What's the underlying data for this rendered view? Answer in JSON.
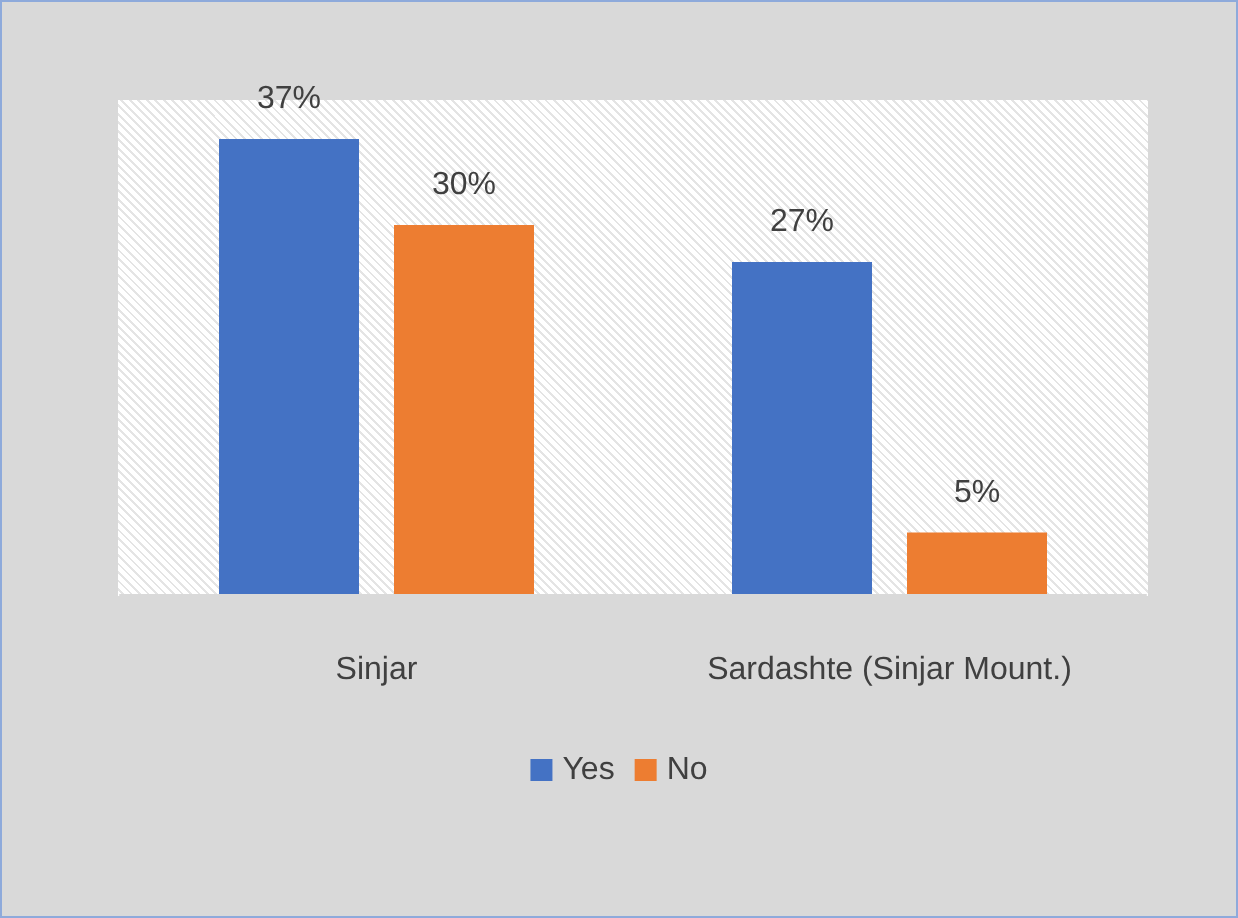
{
  "chart_data": {
    "type": "bar",
    "categories": [
      "Sinjar",
      "Sardashte (Sinjar Mount.)"
    ],
    "series": [
      {
        "name": "Yes",
        "color": "#4472c4",
        "values": [
          37,
          27
        ],
        "value_labels": [
          "37%",
          "27%"
        ]
      },
      {
        "name": "No",
        "color": "#ed7d31",
        "values": [
          30,
          5
        ],
        "value_labels": [
          "30%",
          "5%"
        ]
      }
    ],
    "legend": "bottom",
    "tick_labels": "x",
    "grid": false
  }
}
